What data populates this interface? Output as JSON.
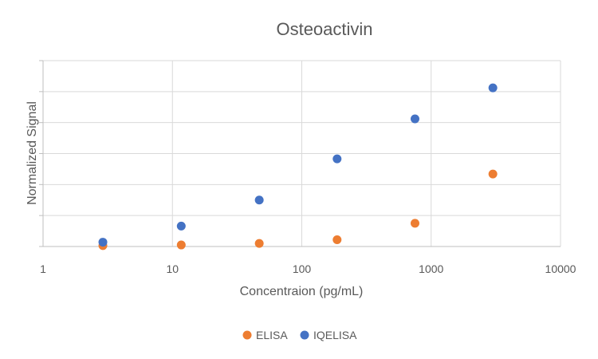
{
  "chart_data": {
    "type": "scatter",
    "title": "Osteoactivin",
    "xlabel": "Concentraion (pg/mL)",
    "ylabel": "Normalized Signal",
    "x_scale": "log",
    "xlim": [
      1,
      10000
    ],
    "ylim": [
      0,
      6
    ],
    "x_tick_labels": [
      "1",
      "10",
      "100",
      "1000",
      "10000"
    ],
    "x_tick_values": [
      1,
      10,
      100,
      1000,
      10000
    ],
    "y_tick_values": [
      0,
      1,
      2,
      3,
      4,
      5,
      6
    ],
    "grid": "on",
    "legend_position": "bottom",
    "series": [
      {
        "name": "ELISA",
        "color": "#ED7D31",
        "points": [
          {
            "x": 2.9,
            "y": 0.03
          },
          {
            "x": 11.7,
            "y": 0.05
          },
          {
            "x": 46.9,
            "y": 0.1
          },
          {
            "x": 187.5,
            "y": 0.22
          },
          {
            "x": 750,
            "y": 0.75
          },
          {
            "x": 3000,
            "y": 2.34
          }
        ]
      },
      {
        "name": "IQELISA",
        "color": "#4472C4",
        "points": [
          {
            "x": 2.9,
            "y": 0.14
          },
          {
            "x": 11.7,
            "y": 0.66
          },
          {
            "x": 46.9,
            "y": 1.5
          },
          {
            "x": 187.5,
            "y": 2.83
          },
          {
            "x": 750,
            "y": 4.12
          },
          {
            "x": 3000,
            "y": 5.12
          }
        ]
      }
    ]
  }
}
